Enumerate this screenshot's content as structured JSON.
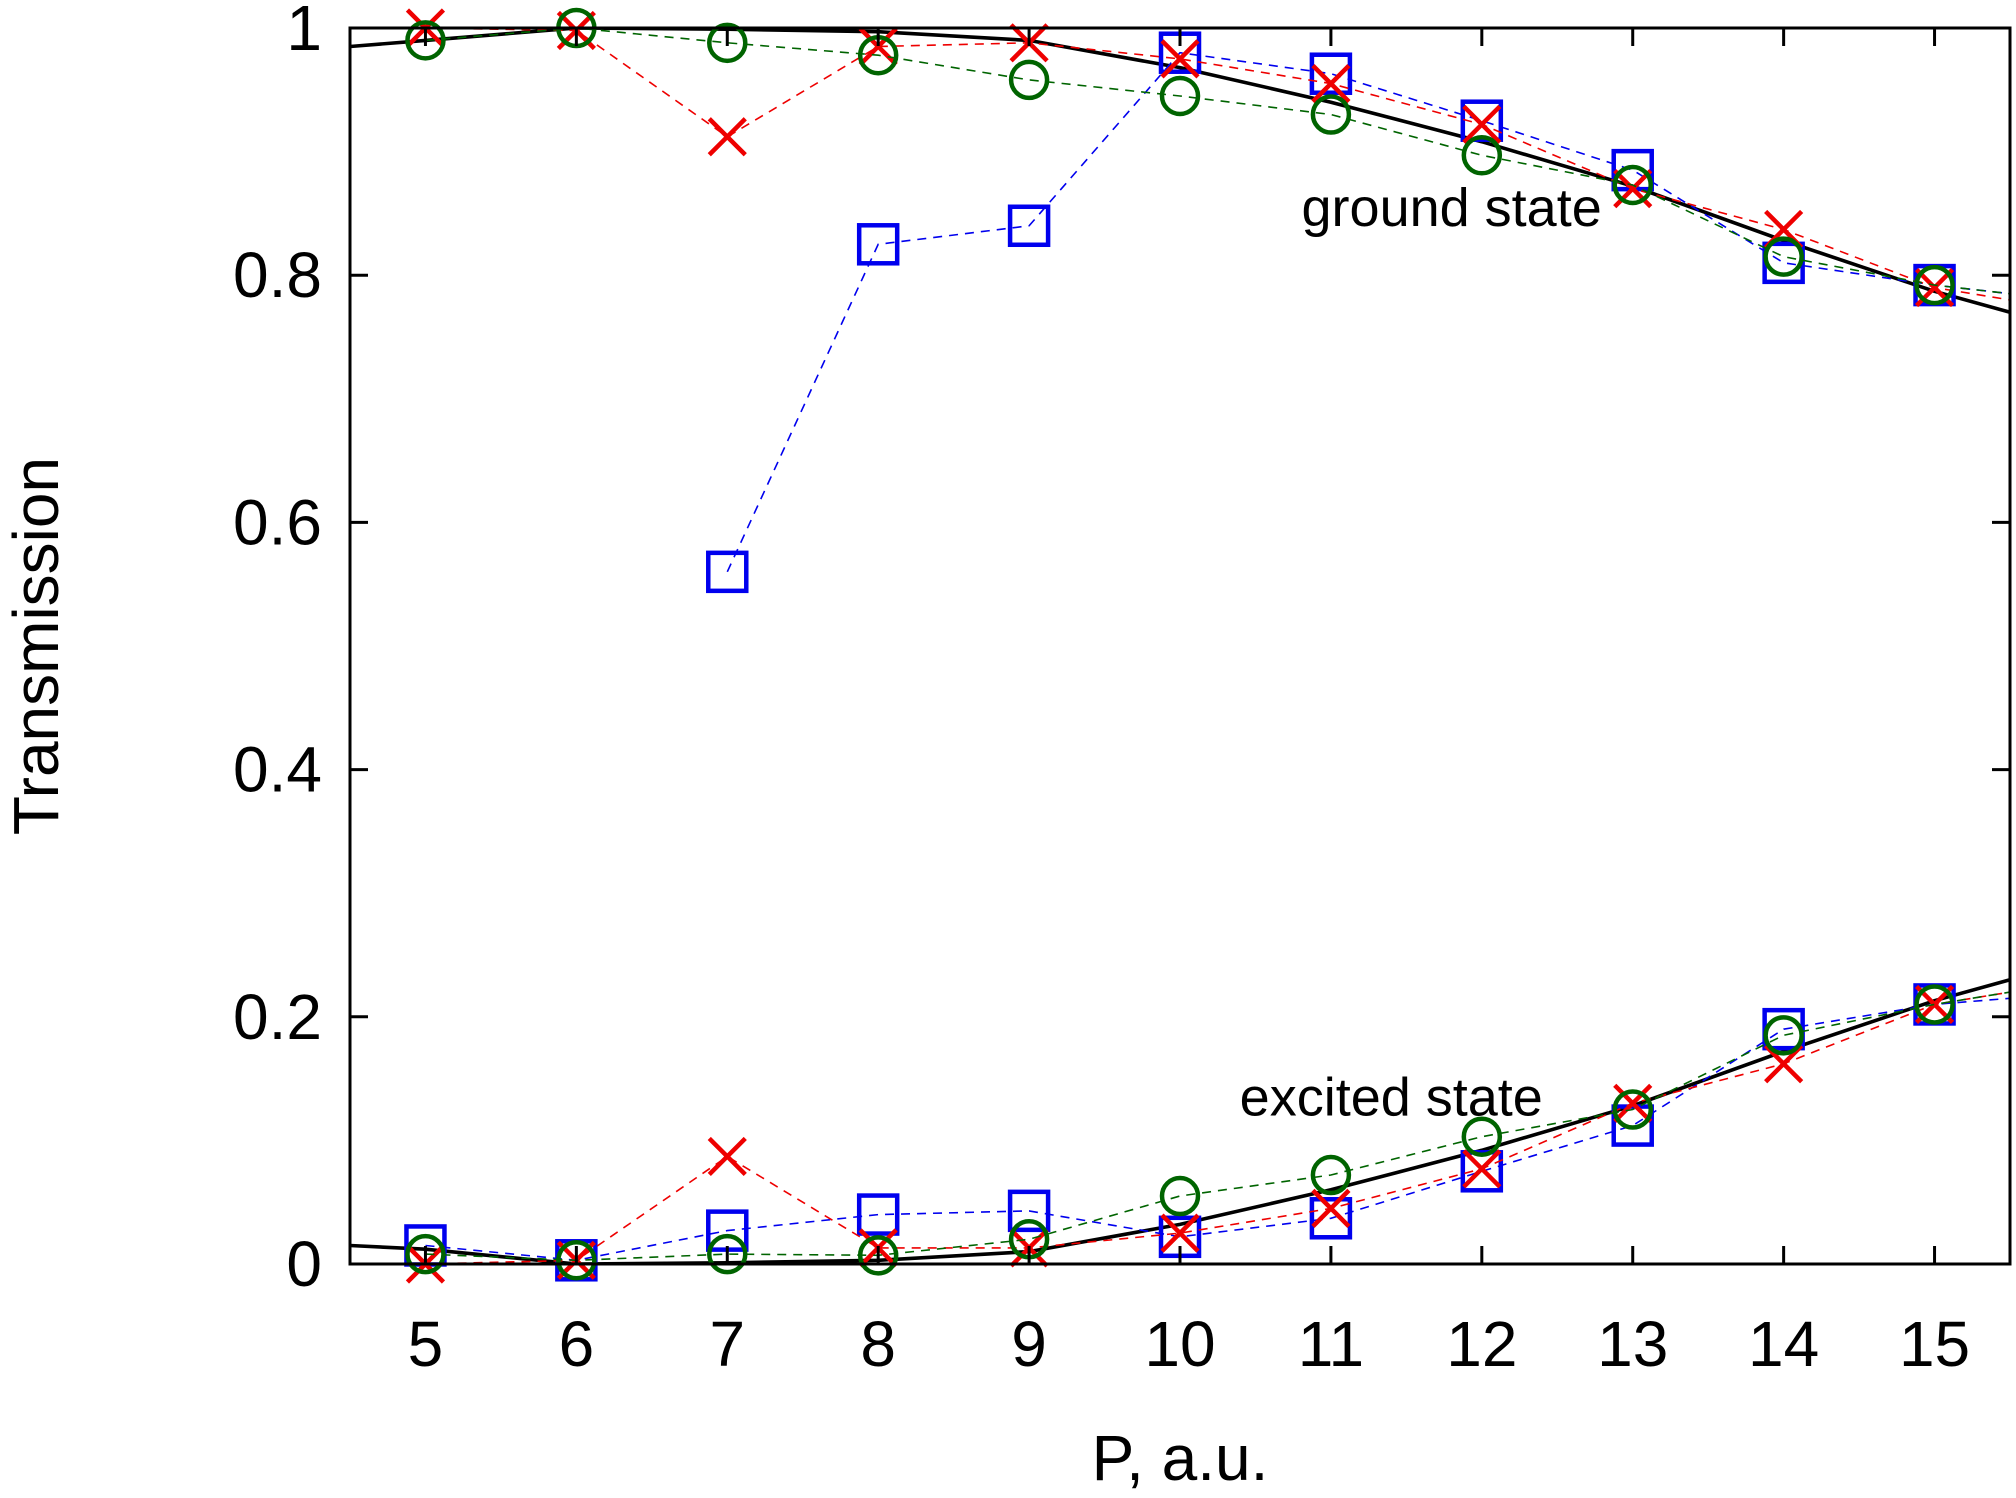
{
  "chart_data": {
    "type": "line",
    "title": "",
    "xlabel": "P, a.u.",
    "ylabel": "Transmission",
    "xlim": [
      4.5,
      15.5
    ],
    "ylim": [
      0,
      1
    ],
    "x_ticks": [
      "5",
      "6",
      "7",
      "8",
      "9",
      "10",
      "11",
      "12",
      "13",
      "14",
      "15"
    ],
    "y_ticks": [
      "0",
      "0.2",
      "0.4",
      "0.6",
      "0.8",
      "1"
    ],
    "grid": false,
    "legend": "none",
    "annotations": [
      {
        "text": "ground state",
        "x": 11.8,
        "y": 0.84
      },
      {
        "text": "excited state",
        "x": 11.4,
        "y": 0.12
      }
    ],
    "series": [
      {
        "group": "ground",
        "style": "solid",
        "marker": "none",
        "color": "#000000",
        "x": [
          4.5,
          5,
          6,
          7,
          8,
          9,
          10,
          11,
          12,
          13,
          14,
          15,
          15.5
        ],
        "values": [
          0.985,
          0.99,
          1.0,
          0.999,
          0.997,
          0.99,
          0.968,
          0.94,
          0.908,
          0.872,
          0.828,
          0.787,
          0.77
        ]
      },
      {
        "group": "excited",
        "style": "solid",
        "marker": "none",
        "color": "#000000",
        "x": [
          4.5,
          5,
          6,
          7,
          8,
          9,
          10,
          11,
          12,
          13,
          14,
          15,
          15.5
        ],
        "values": [
          0.015,
          0.012,
          0.0,
          0.001,
          0.003,
          0.01,
          0.032,
          0.06,
          0.092,
          0.128,
          0.172,
          0.213,
          0.23
        ]
      },
      {
        "group": "ground",
        "style": "dashed",
        "marker": "square",
        "color": "#0000ee",
        "x": [
          7,
          8,
          9,
          10,
          11,
          12,
          13,
          14,
          15,
          15.5
        ],
        "values": [
          0.56,
          0.825,
          0.84,
          0.98,
          0.963,
          0.925,
          0.885,
          0.81,
          0.792,
          0.785
        ]
      },
      {
        "group": "excited",
        "style": "dashed",
        "marker": "square",
        "color": "#0000ee",
        "x": [
          5,
          6,
          7,
          8,
          9,
          10,
          11,
          12,
          13,
          14,
          15,
          15.5
        ],
        "values": [
          0.015,
          0.003,
          0.027,
          0.04,
          0.043,
          0.022,
          0.037,
          0.075,
          0.112,
          0.19,
          0.21,
          0.215
        ]
      },
      {
        "group": "ground",
        "style": "dashed",
        "marker": "cross",
        "color": "#ee0000",
        "x": [
          5,
          6,
          7,
          8,
          9,
          10,
          11,
          12,
          13,
          14,
          15,
          15.5
        ],
        "values": [
          1.0,
          0.998,
          0.912,
          0.985,
          0.988,
          0.975,
          0.955,
          0.922,
          0.87,
          0.837,
          0.79,
          0.78
        ]
      },
      {
        "group": "excited",
        "style": "dashed",
        "marker": "cross",
        "color": "#ee0000",
        "x": [
          5,
          6,
          7,
          8,
          9,
          10,
          11,
          12,
          13,
          14,
          15,
          15.5
        ],
        "values": [
          0.0,
          0.003,
          0.087,
          0.013,
          0.013,
          0.025,
          0.045,
          0.077,
          0.13,
          0.162,
          0.21,
          0.22
        ]
      },
      {
        "group": "ground",
        "style": "dashed",
        "marker": "circle",
        "color": "#006400",
        "x": [
          5,
          6,
          7,
          8,
          9,
          10,
          11,
          12,
          13,
          14,
          15,
          15.5
        ],
        "values": [
          0.99,
          1.0,
          0.988,
          0.978,
          0.958,
          0.945,
          0.93,
          0.897,
          0.873,
          0.815,
          0.792,
          0.785
        ]
      },
      {
        "group": "excited",
        "style": "dashed",
        "marker": "circle",
        "color": "#006400",
        "x": [
          5,
          6,
          7,
          8,
          9,
          10,
          11,
          12,
          13,
          14,
          15,
          15.5
        ],
        "values": [
          0.008,
          0.003,
          0.008,
          0.007,
          0.02,
          0.055,
          0.072,
          0.103,
          0.125,
          0.185,
          0.21,
          0.22
        ]
      }
    ]
  }
}
